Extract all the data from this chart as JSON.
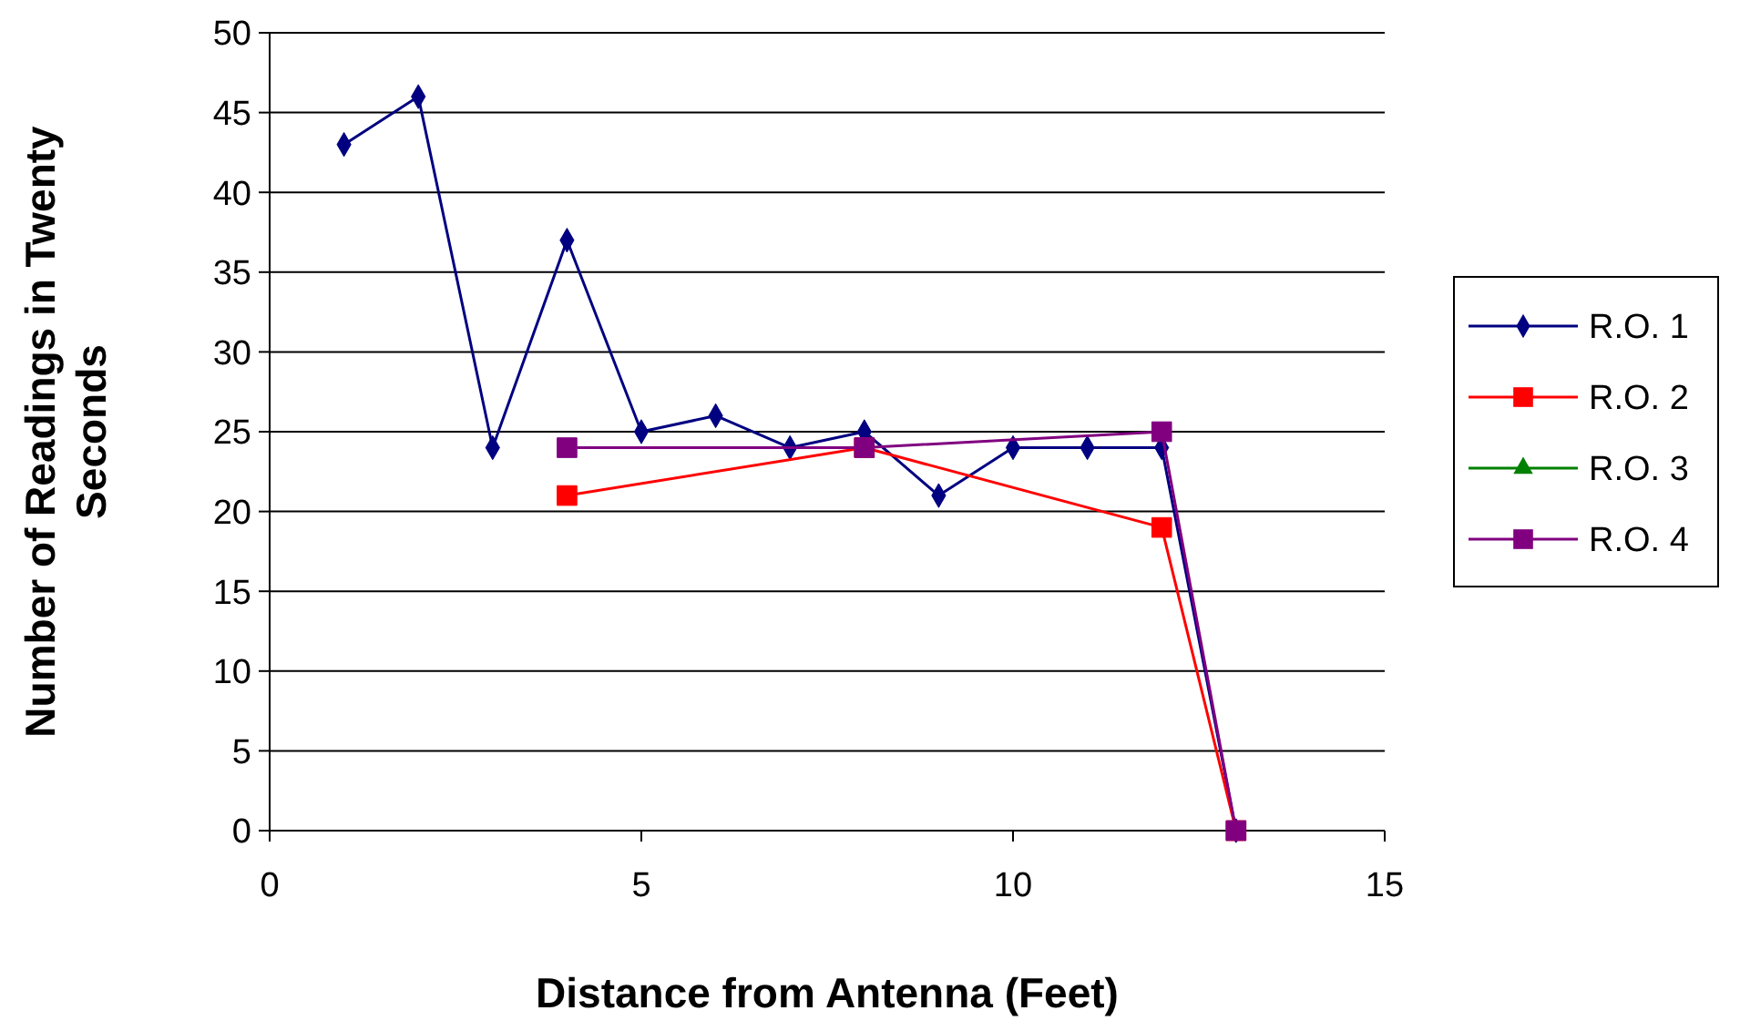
{
  "chart_data": {
    "type": "line",
    "xlabel": "Distance from Antenna (Feet)",
    "ylabel": "Number of Readings in Twenty Seconds",
    "xlim": [
      0,
      15
    ],
    "xticks": [
      0,
      5,
      10,
      15
    ],
    "ylim": [
      0,
      50
    ],
    "yticks": [
      0,
      5,
      10,
      15,
      20,
      25,
      30,
      35,
      40,
      45,
      50
    ],
    "grid": "y",
    "legend": "right",
    "series": [
      {
        "name": "R.O. 1",
        "color": "#000080",
        "marker": "diamond",
        "x": [
          1,
          2,
          3,
          4,
          5,
          6,
          7,
          8,
          9,
          10,
          11,
          12,
          13
        ],
        "values": [
          43,
          46,
          24,
          37,
          25,
          26,
          24,
          25,
          21,
          24,
          24,
          24,
          0
        ]
      },
      {
        "name": "R.O. 2",
        "color": "#ff0000",
        "marker": "square",
        "x": [
          4,
          8,
          12,
          13
        ],
        "values": [
          21,
          24,
          19,
          0
        ]
      },
      {
        "name": "R.O. 3",
        "color": "#008000",
        "marker": "triangle"
      },
      {
        "name": "R.O. 4",
        "color": "#800080",
        "marker": "square",
        "x": [
          4,
          8,
          12,
          13
        ],
        "values": [
          24,
          24,
          25,
          0
        ]
      }
    ]
  }
}
